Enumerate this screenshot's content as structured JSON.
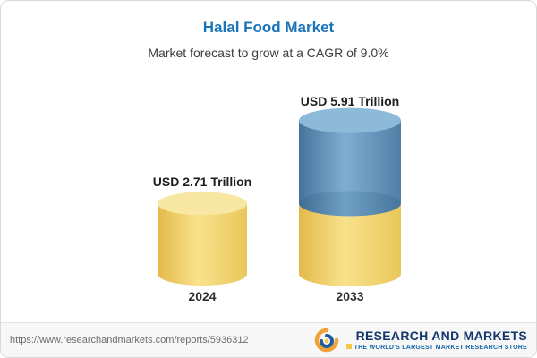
{
  "header": {
    "title": "Halal Food Market",
    "subtitle": "Market forecast to grow at a CAGR of 9.0%"
  },
  "chart_data": {
    "type": "bar",
    "categories": [
      "2024",
      "2033"
    ],
    "values": [
      2.71,
      5.91
    ],
    "value_labels": [
      "USD 2.71 Trillion",
      "USD 5.91 Trillion"
    ],
    "unit": "USD Trillion",
    "title": "Halal Food Market",
    "subtitle": "Market forecast to grow at a CAGR of 9.0%",
    "cagr": "9.0%",
    "legend_position": "none",
    "grid": false,
    "colors": {
      "base_segment": "#F0CE62",
      "growth_segment": "#5B8DB4"
    }
  },
  "footer": {
    "url": "https://www.researchandmarkets.com/reports/5936312",
    "logo_text": "RESEARCH AND MARKETS",
    "logo_tagline": "THE WORLD'S LARGEST MARKET RESEARCH STORE"
  }
}
